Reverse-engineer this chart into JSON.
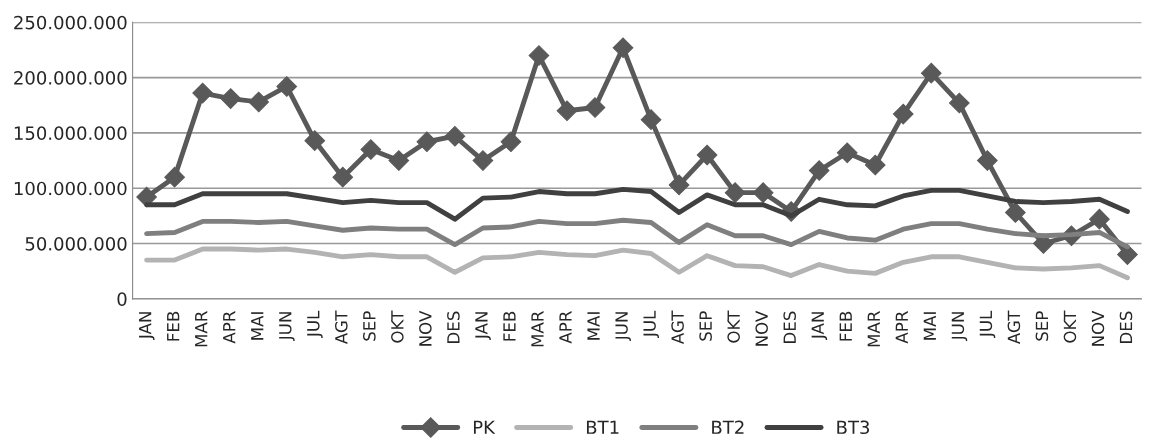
{
  "chart_data": {
    "type": "line",
    "categories": [
      "JAN",
      "FEB",
      "MAR",
      "APR",
      "MAI",
      "JUN",
      "JUL",
      "AGT",
      "SEP",
      "OKT",
      "NOV",
      "DES",
      "JAN",
      "FEB",
      "MAR",
      "APR",
      "MAI",
      "JUN",
      "JUL",
      "AGT",
      "SEP",
      "OKT",
      "NOV",
      "DES",
      "JAN",
      "FEB",
      "MAR",
      "APR",
      "MAI",
      "JUN",
      "JUL",
      "AGT",
      "SEP",
      "OKT",
      "NOV",
      "DES"
    ],
    "series": [
      {
        "name": "PK",
        "color": "#595959",
        "marker": "diamond",
        "values": [
          92000000,
          110000000,
          186000000,
          181000000,
          178000000,
          192000000,
          143000000,
          110000000,
          135000000,
          125000000,
          142000000,
          147000000,
          125000000,
          142000000,
          220000000,
          170000000,
          173000000,
          227000000,
          162000000,
          103000000,
          130000000,
          96000000,
          96000000,
          79000000,
          116000000,
          132000000,
          121000000,
          167000000,
          204000000,
          177000000,
          125000000,
          78000000,
          50000000,
          57000000,
          72000000,
          40000000
        ]
      },
      {
        "name": "BT1",
        "color": "#b3b3b3",
        "marker": "none",
        "values": [
          35000000,
          35000000,
          45000000,
          45000000,
          44000000,
          45000000,
          42000000,
          38000000,
          40000000,
          38000000,
          38000000,
          24000000,
          37000000,
          38000000,
          42000000,
          40000000,
          39000000,
          44000000,
          41000000,
          24000000,
          39000000,
          30000000,
          29000000,
          21000000,
          31000000,
          25000000,
          23000000,
          33000000,
          38000000,
          38000000,
          33000000,
          28000000,
          27000000,
          28000000,
          30000000,
          19000000
        ]
      },
      {
        "name": "BT2",
        "color": "#7f7f7f",
        "marker": "none",
        "values": [
          59000000,
          60000000,
          70000000,
          70000000,
          69000000,
          70000000,
          66000000,
          62000000,
          64000000,
          63000000,
          63000000,
          49000000,
          64000000,
          65000000,
          70000000,
          68000000,
          68000000,
          71000000,
          69000000,
          51000000,
          67000000,
          57000000,
          57000000,
          49000000,
          61000000,
          55000000,
          53000000,
          63000000,
          68000000,
          68000000,
          63000000,
          59000000,
          57000000,
          58000000,
          60000000,
          47000000
        ]
      },
      {
        "name": "BT3",
        "color": "#404040",
        "marker": "none",
        "values": [
          85000000,
          85000000,
          95000000,
          95000000,
          95000000,
          95000000,
          91000000,
          87000000,
          89000000,
          87000000,
          87000000,
          72000000,
          91000000,
          92000000,
          97000000,
          95000000,
          95000000,
          99000000,
          97000000,
          78000000,
          94000000,
          85000000,
          85000000,
          75000000,
          90000000,
          85000000,
          84000000,
          93000000,
          98000000,
          98000000,
          93000000,
          88000000,
          87000000,
          88000000,
          90000000,
          79000000
        ]
      }
    ],
    "ylim": [
      0,
      250000000
    ],
    "yticks": [
      {
        "value": 0,
        "label": "0"
      },
      {
        "value": 50000000,
        "label": "50.000.000"
      },
      {
        "value": 100000000,
        "label": "100.000.000"
      },
      {
        "value": 150000000,
        "label": "150.000.000"
      },
      {
        "value": 200000000,
        "label": "200.000.000"
      },
      {
        "value": 250000000,
        "label": "250.000.000"
      }
    ],
    "grid": "y",
    "legend": "bottom",
    "line_style": "solid"
  }
}
